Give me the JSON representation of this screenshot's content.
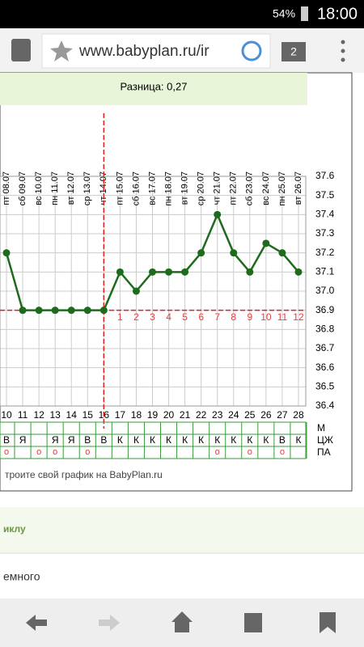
{
  "status_bar": {
    "battery": "54%",
    "time": "18:00"
  },
  "browser": {
    "url": "www.babyplan.ru/ir",
    "tabs": "2"
  },
  "chart_data": {
    "type": "line",
    "subtitle": "Разница: 0,27",
    "x": [
      10,
      11,
      12,
      13,
      14,
      15,
      16,
      17,
      18,
      19,
      20,
      21,
      22,
      23,
      24,
      25,
      26,
      27,
      28
    ],
    "dates": [
      "пт 08.07",
      "сб 09.07",
      "вс 10.07",
      "пн 11.07",
      "вт 12.07",
      "ср 13.07",
      "чт 14.07",
      "пт 15.07",
      "сб 16.07",
      "вс 17.07",
      "пн 18.07",
      "вт 19.07",
      "ср 20.07",
      "чт 21.07",
      "пт 22.07",
      "сб 23.07",
      "вс 24.07",
      "пн 25.07",
      "вт 26.07"
    ],
    "values": [
      37.2,
      36.9,
      36.9,
      36.9,
      36.9,
      36.9,
      36.9,
      37.1,
      37.0,
      37.1,
      37.1,
      37.1,
      37.2,
      37.4,
      37.2,
      37.1,
      37.25,
      37.2,
      37.1
    ],
    "color": "#1e6b1e",
    "xlim": [
      9.6,
      28.45
    ],
    "ylim": [
      36.4,
      37.6
    ],
    "yticks": [
      36.4,
      36.5,
      36.6,
      36.7,
      36.8,
      36.9,
      {
        "value": 37.0,
        "label": "37.0"
      },
      37.1,
      37.2,
      37.3,
      37.4,
      37.5,
      37.6
    ],
    "grid": true,
    "cover_line": 36.9,
    "ovulation_day": 16,
    "luteal_days": [
      null,
      null,
      null,
      null,
      null,
      null,
      null,
      1,
      2,
      3,
      4,
      5,
      6,
      7,
      8,
      9,
      10,
      11,
      12
    ],
    "row_labels": [
      "М",
      "ЦЖ",
      "ПА"
    ],
    "mucus": [
      "В",
      "Я",
      null,
      "Я",
      "Я",
      "В",
      "В",
      "К",
      "К",
      "К",
      "К",
      "К",
      "К",
      "К",
      "К",
      "К",
      "К",
      "В",
      "К"
    ],
    "pa": [
      "о",
      null,
      "о",
      "о",
      null,
      "о",
      null,
      null,
      null,
      null,
      null,
      null,
      null,
      "о",
      null,
      "о",
      null,
      "о",
      null
    ],
    "footer": "троите свой график на BabyPlan.ru"
  },
  "page": {
    "section": "иклу",
    "text": "емного"
  }
}
